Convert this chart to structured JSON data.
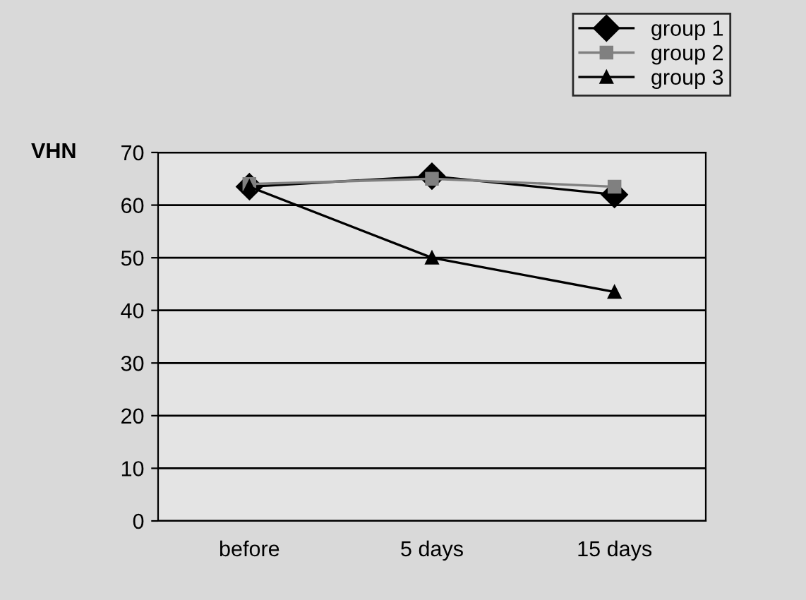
{
  "chart_data": {
    "type": "line",
    "ylabel": "VHN",
    "categories": [
      "before",
      "5 days",
      "15 days"
    ],
    "series": [
      {
        "name": "group 1",
        "color": "#000000",
        "marker": "diamond",
        "values": [
          63.5,
          65.5,
          62
        ]
      },
      {
        "name": "group 2",
        "color": "#808080",
        "marker": "square",
        "values": [
          64,
          65,
          63.5
        ]
      },
      {
        "name": "group 3",
        "color": "#000000",
        "marker": "triangle",
        "values": [
          63.5,
          50,
          43.5
        ]
      }
    ],
    "ylim": [
      0,
      70
    ],
    "yticks": [
      0,
      10,
      20,
      30,
      40,
      50,
      60,
      70
    ],
    "grid": "y",
    "legend": "top right",
    "line_style": "solid"
  }
}
